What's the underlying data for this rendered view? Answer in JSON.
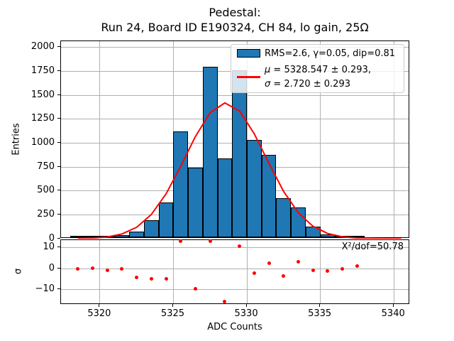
{
  "chart_data": {
    "type": "histogram",
    "title": "Pedestal:",
    "subtitle": "Run 24, Board ID E190324, CH 84, lo gain, 25Ω",
    "xlabel": "ADC Counts",
    "x_axis": {
      "xlim": [
        5317.35,
        5341.1
      ],
      "ticks": [
        5320,
        5325,
        5330,
        5335,
        5340
      ]
    },
    "grid": true,
    "grid_color": "#b0b0b0",
    "main_panel": {
      "ylabel": "Entries",
      "ylim": [
        0,
        2065
      ],
      "yticks": [
        0,
        250,
        500,
        750,
        1000,
        1250,
        1500,
        1750,
        2000
      ],
      "histogram": {
        "bin_start": 5318,
        "bin_width": 1,
        "counts": [
          3,
          6,
          10,
          25,
          60,
          180,
          365,
          1110,
          730,
          1785,
          825,
          1745,
          1015,
          865,
          410,
          315,
          110,
          28,
          2,
          8
        ],
        "fill_color": "#1f77b4",
        "edge_color": "#000000",
        "legend_label": "RMS=2.6, γ=0.05, dip=0.81"
      },
      "fit_curve": {
        "shape": "gaussian",
        "mu": 5328.547,
        "sigma": 2.72,
        "amplitude": 1420,
        "x_start": 5318.5,
        "x_end": 5340.5,
        "sample_step": 1,
        "color": "#ff0000",
        "legend_label_line1": "μ = 5328.547 ± 0.293,",
        "legend_label_line2": "σ = 2.720 ± 0.293"
      }
    },
    "pull_panel": {
      "ylabel": "σ",
      "ylim": [
        -17.3,
        13.6
      ],
      "yticks": [
        10,
        0,
        -10
      ],
      "annotation": "X²/dof=50.78",
      "points": {
        "x": [
          5318.5,
          5319.5,
          5320.5,
          5321.5,
          5322.5,
          5323.5,
          5324.5,
          5325.5,
          5326.5,
          5327.5,
          5328.5,
          5329.5,
          5330.5,
          5331.5,
          5332.5,
          5333.5,
          5334.5,
          5335.5,
          5336.5,
          5337.5
        ],
        "y": [
          -0.1,
          0.2,
          -0.7,
          -0.25,
          -4.1,
          -4.9,
          -4.85,
          12.95,
          -9.6,
          12.95,
          -15.7,
          10.8,
          -2.1,
          2.7,
          -3.4,
          3.4,
          -1.0,
          -1.3,
          -0.3,
          1.1
        ],
        "color": "#ff0000"
      }
    }
  }
}
